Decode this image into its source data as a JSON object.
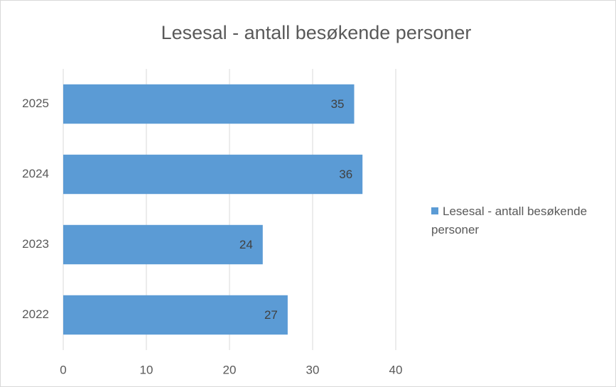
{
  "chart_data": {
    "type": "bar",
    "orientation": "horizontal",
    "title": "Lesesal - antall besøkende personer",
    "categories": [
      "2025",
      "2024",
      "2023",
      "2022"
    ],
    "series": [
      {
        "name": "Lesesal - antall besøkende personer",
        "color": "#5b9bd5",
        "values": [
          35,
          36,
          24,
          27
        ]
      }
    ],
    "xlim": [
      0,
      40
    ],
    "xticks": [
      0,
      10,
      20,
      30,
      40
    ],
    "grid": true,
    "legend": "right"
  }
}
